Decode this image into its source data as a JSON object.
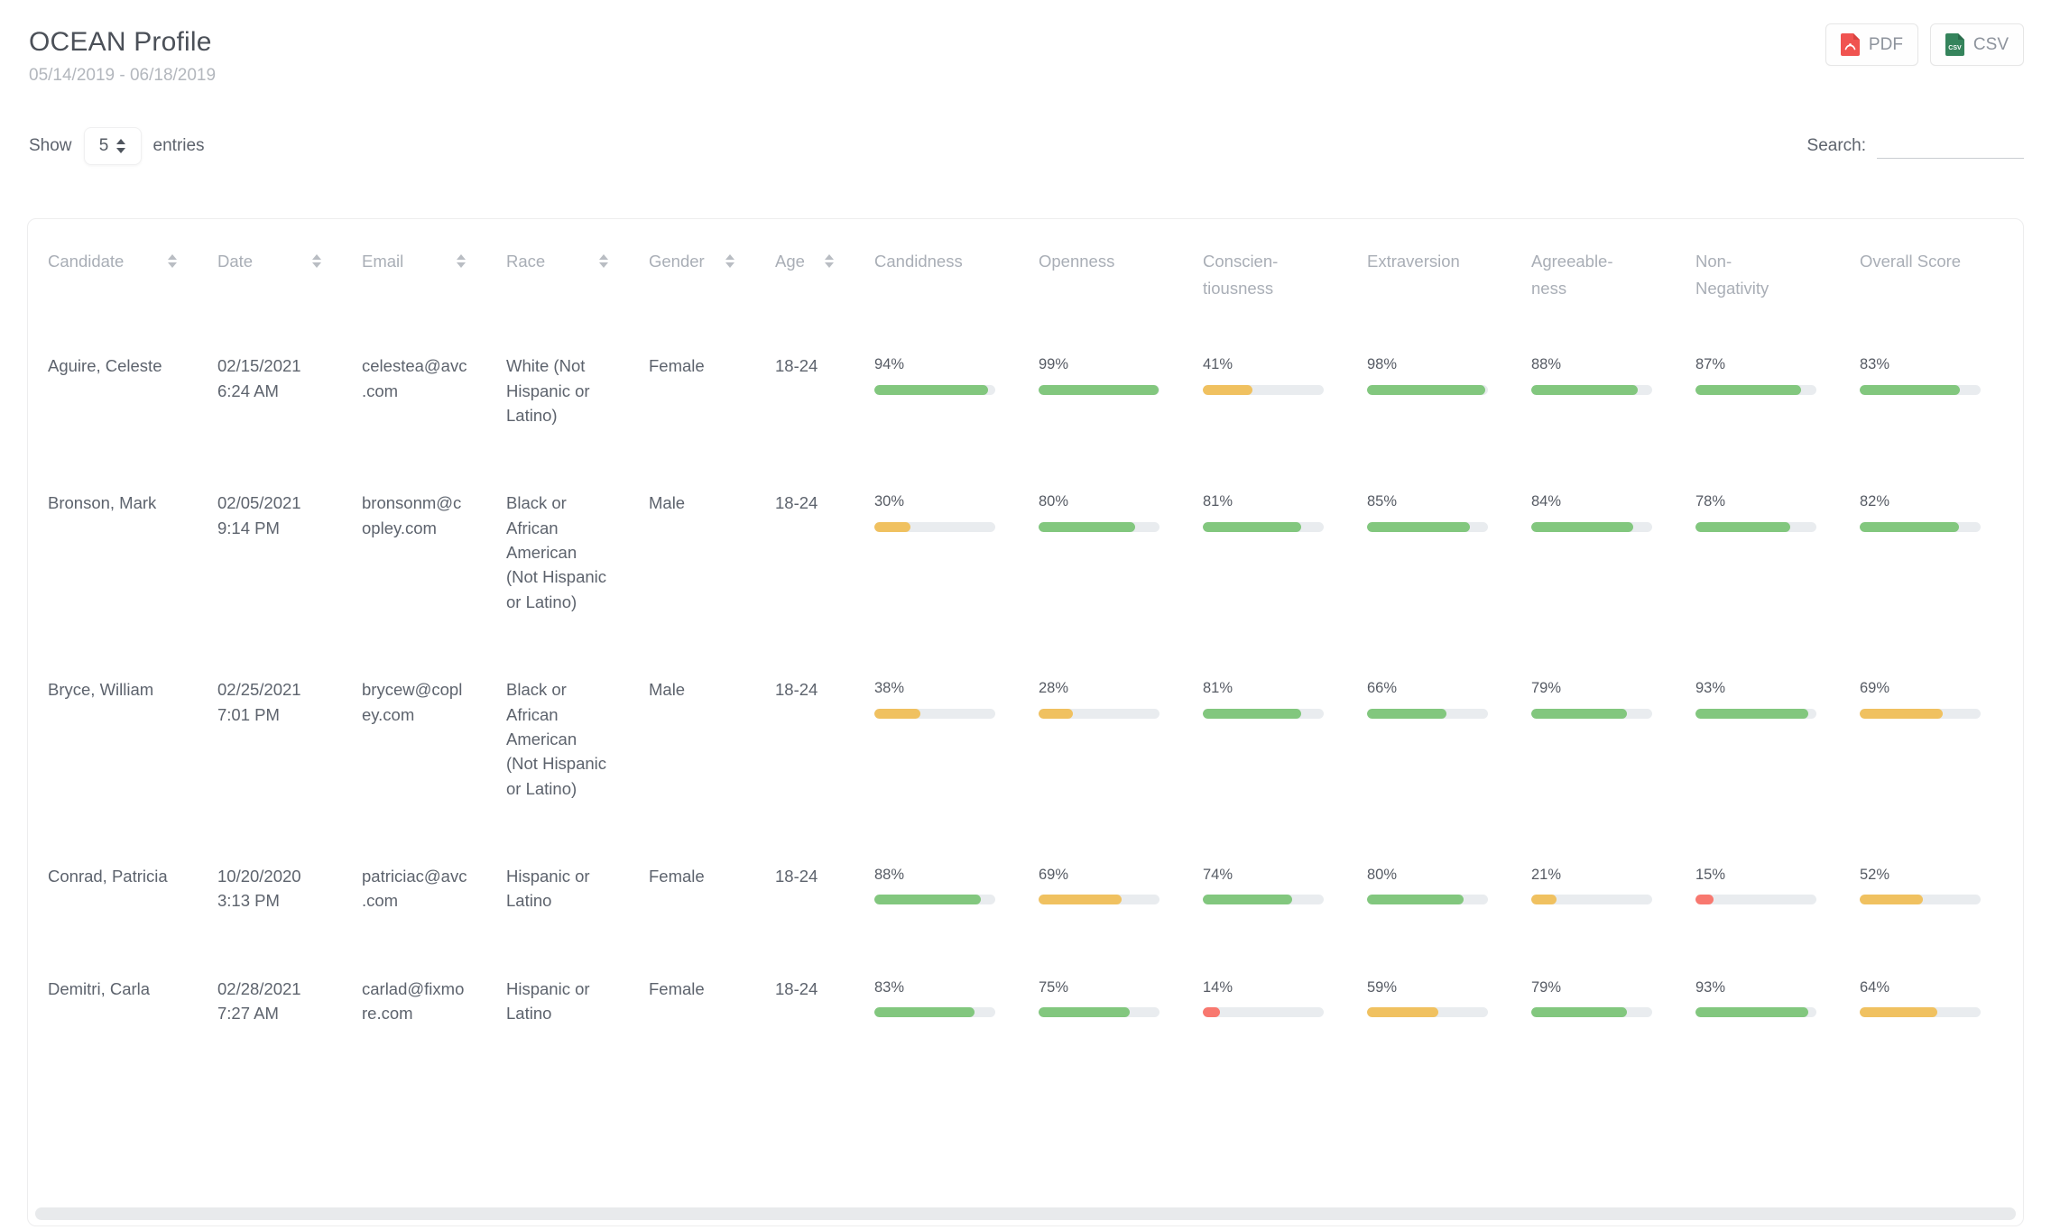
{
  "page": {
    "title": "OCEAN Profile",
    "date_range": "05/14/2019 - 06/18/2019"
  },
  "toolbar": {
    "pdf_label": "PDF",
    "csv_label": "CSV"
  },
  "controls": {
    "show_label": "Show",
    "entries_value": "5",
    "entries_suffix": "entries",
    "search_label": "Search:",
    "search_value": ""
  },
  "colors": {
    "green": "#82c77e",
    "yellow": "#f0c160",
    "red": "#f8786f",
    "track": "#e9ecef",
    "pdf_icon": "#f05350",
    "csv_icon": "#35845c"
  },
  "table": {
    "columns": [
      {
        "label": "Candidate",
        "sortable": true
      },
      {
        "label": "Date",
        "sortable": true
      },
      {
        "label": "Email",
        "sortable": true
      },
      {
        "label": "Race",
        "sortable": true
      },
      {
        "label": "Gender",
        "sortable": true
      },
      {
        "label": "Age",
        "sortable": true
      },
      {
        "label": "Candidness",
        "sortable": false
      },
      {
        "label": "Openness",
        "sortable": false
      },
      {
        "label": "Conscien-\ntiousness",
        "sortable": false
      },
      {
        "label": "Extraversion",
        "sortable": false
      },
      {
        "label": "Agreeable-\nness",
        "sortable": false
      },
      {
        "label": "Non-\nNegativity",
        "sortable": false
      },
      {
        "label": "Overall Score",
        "sortable": false
      }
    ],
    "rows": [
      {
        "candidate": "Aguire, Celeste",
        "date": "02/15/2021",
        "time": "6:24 AM",
        "email": "celestea@avc.com",
        "race": "White (Not Hispanic or Latino)",
        "gender": "Female",
        "age": "18-24",
        "scores": [
          {
            "label": "94%",
            "value": 94,
            "color": "green"
          },
          {
            "label": "99%",
            "value": 99,
            "color": "green"
          },
          {
            "label": "41%",
            "value": 41,
            "color": "yellow"
          },
          {
            "label": "98%",
            "value": 98,
            "color": "green"
          },
          {
            "label": "88%",
            "value": 88,
            "color": "green"
          },
          {
            "label": "87%",
            "value": 87,
            "color": "green"
          },
          {
            "label": "83%",
            "value": 83,
            "color": "green"
          }
        ]
      },
      {
        "candidate": "Bronson, Mark",
        "date": "02/05/2021",
        "time": "9:14 PM",
        "email": "bronsonm@copley.com",
        "race": "Black or African American (Not Hispanic or Latino)",
        "gender": "Male",
        "age": "18-24",
        "scores": [
          {
            "label": "30%",
            "value": 30,
            "color": "yellow"
          },
          {
            "label": "80%",
            "value": 80,
            "color": "green"
          },
          {
            "label": "81%",
            "value": 81,
            "color": "green"
          },
          {
            "label": "85%",
            "value": 85,
            "color": "green"
          },
          {
            "label": "84%",
            "value": 84,
            "color": "green"
          },
          {
            "label": "78%",
            "value": 78,
            "color": "green"
          },
          {
            "label": "82%",
            "value": 82,
            "color": "green"
          }
        ]
      },
      {
        "candidate": "Bryce, William",
        "date": "02/25/2021",
        "time": "7:01 PM",
        "email": "brycew@copley.com",
        "race": "Black or African American (Not Hispanic or Latino)",
        "gender": "Male",
        "age": "18-24",
        "scores": [
          {
            "label": "38%",
            "value": 38,
            "color": "yellow"
          },
          {
            "label": "28%",
            "value": 28,
            "color": "yellow"
          },
          {
            "label": "81%",
            "value": 81,
            "color": "green"
          },
          {
            "label": "66%",
            "value": 66,
            "color": "green"
          },
          {
            "label": "79%",
            "value": 79,
            "color": "green"
          },
          {
            "label": "93%",
            "value": 93,
            "color": "green"
          },
          {
            "label": "69%",
            "value": 69,
            "color": "yellow"
          }
        ]
      },
      {
        "candidate": "Conrad, Patricia",
        "date": "10/20/2020",
        "time": "3:13 PM",
        "email": "patriciac@avc.com",
        "race": "Hispanic or Latino",
        "gender": "Female",
        "age": "18-24",
        "scores": [
          {
            "label": "88%",
            "value": 88,
            "color": "green"
          },
          {
            "label": "69%",
            "value": 69,
            "color": "yellow"
          },
          {
            "label": "74%",
            "value": 74,
            "color": "green"
          },
          {
            "label": "80%",
            "value": 80,
            "color": "green"
          },
          {
            "label": "21%",
            "value": 21,
            "color": "yellow"
          },
          {
            "label": "15%",
            "value": 15,
            "color": "red"
          },
          {
            "label": "52%",
            "value": 52,
            "color": "yellow"
          }
        ]
      },
      {
        "candidate": "Demitri, Carla",
        "date": "02/28/2021",
        "time": "7:27 AM",
        "email": "carlad@fixmore.com",
        "race": "Hispanic or Latino",
        "gender": "Female",
        "age": "18-24",
        "scores": [
          {
            "label": "83%",
            "value": 83,
            "color": "green"
          },
          {
            "label": "75%",
            "value": 75,
            "color": "green"
          },
          {
            "label": "14%",
            "value": 14,
            "color": "red"
          },
          {
            "label": "59%",
            "value": 59,
            "color": "yellow"
          },
          {
            "label": "79%",
            "value": 79,
            "color": "green"
          },
          {
            "label": "93%",
            "value": 93,
            "color": "green"
          },
          {
            "label": "64%",
            "value": 64,
            "color": "yellow"
          }
        ]
      }
    ]
  }
}
